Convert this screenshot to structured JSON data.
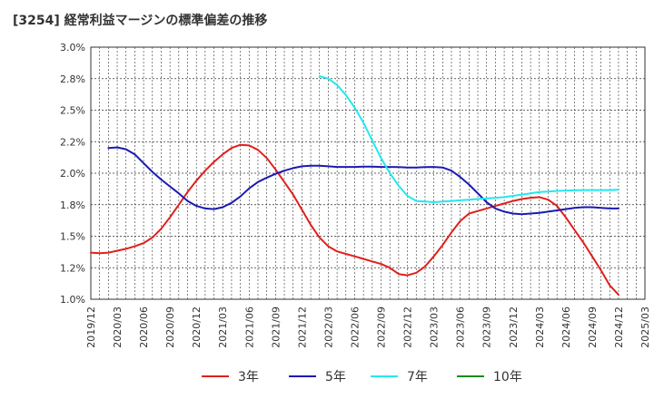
{
  "chart_data": {
    "type": "line",
    "title": "[3254]  経常利益マージンの標準偏差の推移",
    "xlabel": "",
    "ylabel": "",
    "ylim": [
      1.0,
      3.0
    ],
    "y_ticks": [
      "3.0%",
      "2.8%",
      "2.5%",
      "2.2%",
      "2.0%",
      "1.8%",
      "1.5%",
      "1.2%",
      "1.0%"
    ],
    "y_tick_values": [
      3.0,
      2.75,
      2.5,
      2.25,
      2.0,
      1.75,
      1.5,
      1.25,
      1.0
    ],
    "x_ticks": [
      "2019/12",
      "2020/03",
      "2020/06",
      "2020/09",
      "2020/12",
      "2021/03",
      "2021/06",
      "2021/09",
      "2021/12",
      "2022/03",
      "2022/06",
      "2022/09",
      "2022/12",
      "2023/03",
      "2023/06",
      "2023/09",
      "2023/12",
      "2024/03",
      "2024/06",
      "2024/09",
      "2024/12",
      "2025/03"
    ],
    "grid": true,
    "legend_position": "bottom",
    "series": [
      {
        "name": "3年",
        "color": "#e0201b",
        "x": [
          "2019/12",
          "2020/01",
          "2020/02",
          "2020/03",
          "2020/04",
          "2020/05",
          "2020/06",
          "2020/07",
          "2020/08",
          "2020/09",
          "2020/10",
          "2020/11",
          "2020/12",
          "2021/01",
          "2021/02",
          "2021/03",
          "2021/04",
          "2021/05",
          "2021/06",
          "2021/07",
          "2021/08",
          "2021/09",
          "2021/10",
          "2021/11",
          "2021/12",
          "2022/01",
          "2022/02",
          "2022/03",
          "2022/04",
          "2022/05",
          "2022/06",
          "2022/07",
          "2022/08",
          "2022/09",
          "2022/10",
          "2022/11",
          "2022/12",
          "2023/01",
          "2023/02",
          "2023/03",
          "2023/04",
          "2023/05",
          "2023/06",
          "2023/07",
          "2023/08",
          "2023/09",
          "2023/10",
          "2023/11",
          "2023/12",
          "2024/01",
          "2024/02",
          "2024/03",
          "2024/04",
          "2024/05",
          "2024/06",
          "2024/07",
          "2024/08",
          "2024/09",
          "2024/10",
          "2024/11",
          "2024/12"
        ],
        "values": [
          1.37,
          1.365,
          1.37,
          1.385,
          1.4,
          1.42,
          1.445,
          1.49,
          1.56,
          1.65,
          1.75,
          1.85,
          1.94,
          2.02,
          2.09,
          2.15,
          2.2,
          2.225,
          2.22,
          2.185,
          2.12,
          2.03,
          1.93,
          1.83,
          1.71,
          1.59,
          1.49,
          1.42,
          1.38,
          1.36,
          1.34,
          1.32,
          1.3,
          1.28,
          1.25,
          1.2,
          1.19,
          1.21,
          1.26,
          1.34,
          1.43,
          1.53,
          1.62,
          1.68,
          1.7,
          1.72,
          1.74,
          1.76,
          1.78,
          1.795,
          1.805,
          1.81,
          1.79,
          1.74,
          1.65,
          1.55,
          1.45,
          1.34,
          1.23,
          1.11,
          1.035
        ]
      },
      {
        "name": "5年",
        "color": "#1a1ab3",
        "x": [
          "2020/02",
          "2020/03",
          "2020/04",
          "2020/05",
          "2020/06",
          "2020/07",
          "2020/08",
          "2020/09",
          "2020/10",
          "2020/11",
          "2020/12",
          "2021/01",
          "2021/02",
          "2021/03",
          "2021/04",
          "2021/05",
          "2021/06",
          "2021/07",
          "2021/08",
          "2021/09",
          "2021/10",
          "2021/11",
          "2021/12",
          "2022/01",
          "2022/02",
          "2022/03",
          "2022/04",
          "2022/05",
          "2022/06",
          "2022/07",
          "2022/08",
          "2022/09",
          "2022/10",
          "2022/11",
          "2022/12",
          "2023/01",
          "2023/02",
          "2023/03",
          "2023/04",
          "2023/05",
          "2023/06",
          "2023/07",
          "2023/08",
          "2023/09",
          "2023/10",
          "2023/11",
          "2023/12",
          "2024/01",
          "2024/02",
          "2024/03",
          "2024/04",
          "2024/05",
          "2024/06",
          "2024/07",
          "2024/08",
          "2024/09",
          "2024/10",
          "2024/11",
          "2024/12"
        ],
        "values": [
          2.2,
          2.205,
          2.19,
          2.15,
          2.08,
          2.01,
          1.95,
          1.895,
          1.84,
          1.78,
          1.74,
          1.72,
          1.715,
          1.73,
          1.765,
          1.815,
          1.88,
          1.93,
          1.965,
          1.995,
          2.02,
          2.04,
          2.055,
          2.06,
          2.06,
          2.055,
          2.05,
          2.05,
          2.05,
          2.052,
          2.052,
          2.05,
          2.05,
          2.048,
          2.045,
          2.045,
          2.048,
          2.05,
          2.045,
          2.02,
          1.97,
          1.91,
          1.84,
          1.77,
          1.72,
          1.695,
          1.68,
          1.675,
          1.68,
          1.685,
          1.695,
          1.705,
          1.715,
          1.725,
          1.73,
          1.73,
          1.725,
          1.72,
          1.72
        ]
      },
      {
        "name": "7年",
        "color": "#22e8f0",
        "x": [
          "2022/02",
          "2022/03",
          "2022/04",
          "2022/05",
          "2022/06",
          "2022/07",
          "2022/08",
          "2022/09",
          "2022/10",
          "2022/11",
          "2022/12",
          "2023/01",
          "2023/02",
          "2023/03",
          "2023/04",
          "2023/05",
          "2023/06",
          "2023/07",
          "2023/08",
          "2023/09",
          "2023/10",
          "2023/11",
          "2023/12",
          "2024/01",
          "2024/02",
          "2024/03",
          "2024/04",
          "2024/05",
          "2024/06",
          "2024/07",
          "2024/08",
          "2024/09",
          "2024/10",
          "2024/11",
          "2024/12"
        ],
        "values": [
          2.77,
          2.75,
          2.7,
          2.62,
          2.52,
          2.4,
          2.26,
          2.12,
          2.0,
          1.9,
          1.82,
          1.78,
          1.775,
          1.77,
          1.775,
          1.78,
          1.785,
          1.79,
          1.795,
          1.8,
          1.805,
          1.81,
          1.82,
          1.83,
          1.84,
          1.85,
          1.855,
          1.86,
          1.862,
          1.865,
          1.866,
          1.866,
          1.866,
          1.866,
          1.87
        ]
      },
      {
        "name": "10年",
        "color": "#1a8c1a",
        "x": [],
        "values": []
      }
    ]
  }
}
